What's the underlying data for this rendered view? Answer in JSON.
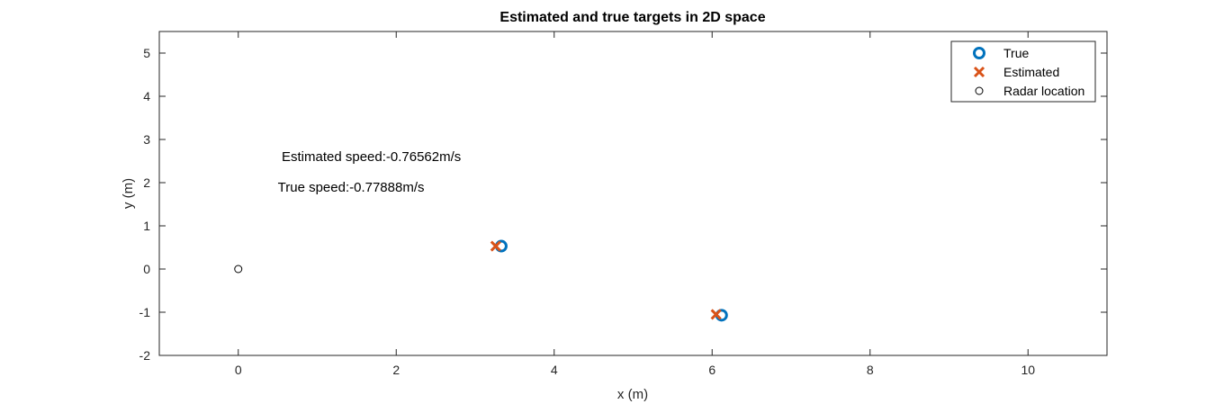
{
  "chart_data": {
    "type": "scatter",
    "title": "Estimated and true targets in 2D space",
    "xlabel": "x (m)",
    "ylabel": "y (m)",
    "xlim": [
      -1,
      11
    ],
    "ylim": [
      -2,
      5.5
    ],
    "xticks": [
      0,
      2,
      4,
      6,
      8,
      10
    ],
    "yticks": [
      -2,
      -1,
      0,
      1,
      2,
      3,
      4,
      5
    ],
    "grid": false,
    "legend_position": "top-right",
    "series": [
      {
        "name": "True",
        "marker": "circle-thick",
        "color": "#0072BD",
        "points": [
          {
            "x": 3.33,
            "y": 0.53
          },
          {
            "x": 6.12,
            "y": -1.07
          }
        ]
      },
      {
        "name": "Estimated",
        "marker": "x",
        "color": "#D95319",
        "points": [
          {
            "x": 3.26,
            "y": 0.53
          },
          {
            "x": 6.05,
            "y": -1.05
          }
        ]
      },
      {
        "name": "Radar location",
        "marker": "circle-thin",
        "color": "#000000",
        "points": [
          {
            "x": 0,
            "y": 0
          }
        ]
      }
    ],
    "annotations": [
      {
        "text": "Estimated speed:-0.76562m/s",
        "x": 0.55,
        "y": 2.6
      },
      {
        "text": "True speed:-0.77888m/s",
        "x": 0.5,
        "y": 1.9
      }
    ]
  }
}
